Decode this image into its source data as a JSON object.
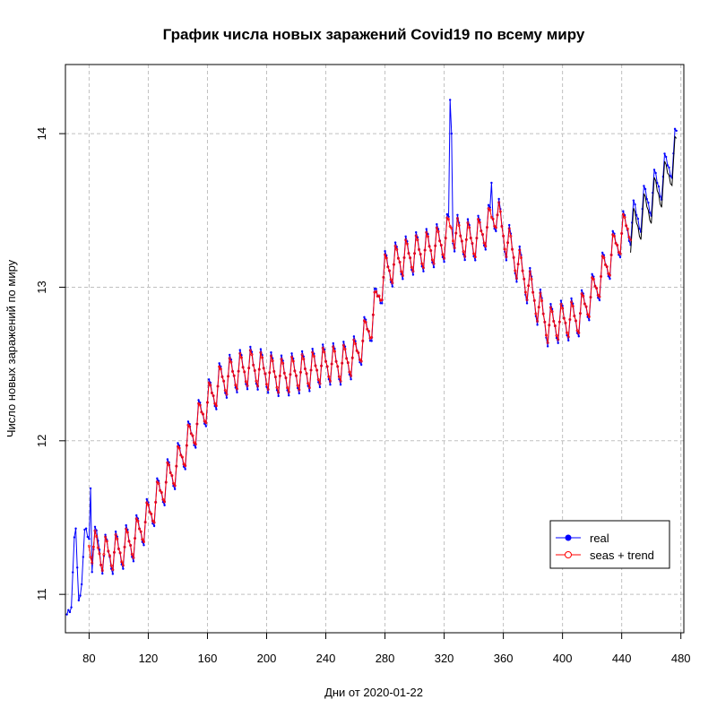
{
  "chart_data": {
    "type": "line",
    "title": "График числа новых заражений Covid19 по всему миру",
    "xlabel": "Дни от 2020-01-22",
    "ylabel": "Число новых заражений по миру",
    "xlim": [
      64,
      482
    ],
    "ylim": [
      10.75,
      14.45
    ],
    "x_ticks": [
      80,
      120,
      160,
      200,
      240,
      280,
      320,
      360,
      400,
      440,
      480
    ],
    "y_ticks": [
      11,
      12,
      13,
      14
    ],
    "grid": true,
    "legend_position": "bottom-right",
    "series": [
      {
        "name": "real",
        "color": "#0000ff",
        "marker": "filled-dot",
        "x_start": 65,
        "x_end": 477,
        "anchors": [
          [
            65,
            10.85
          ],
          [
            68,
            11.05
          ],
          [
            71,
            11.33
          ],
          [
            73,
            10.98
          ],
          [
            75,
            11.2
          ],
          [
            78,
            11.33
          ],
          [
            80,
            11.38
          ],
          [
            81,
            11.69
          ],
          [
            82,
            11.28
          ],
          [
            86,
            11.33
          ],
          [
            90,
            11.25
          ],
          [
            100,
            11.28
          ],
          [
            110,
            11.35
          ],
          [
            120,
            11.5
          ],
          [
            130,
            11.7
          ],
          [
            140,
            11.85
          ],
          [
            150,
            12.05
          ],
          [
            160,
            12.25
          ],
          [
            170,
            12.4
          ],
          [
            180,
            12.45
          ],
          [
            190,
            12.48
          ],
          [
            200,
            12.45
          ],
          [
            210,
            12.42
          ],
          [
            220,
            12.44
          ],
          [
            230,
            12.46
          ],
          [
            240,
            12.5
          ],
          [
            250,
            12.5
          ],
          [
            260,
            12.55
          ],
          [
            270,
            12.75
          ],
          [
            280,
            13.1
          ],
          [
            290,
            13.18
          ],
          [
            300,
            13.22
          ],
          [
            310,
            13.25
          ],
          [
            320,
            13.3
          ],
          [
            325,
            13.4
          ],
          [
            330,
            13.32
          ],
          [
            340,
            13.3
          ],
          [
            350,
            13.4
          ],
          [
            355,
            13.5
          ],
          [
            360,
            13.35
          ],
          [
            370,
            13.15
          ],
          [
            380,
            12.95
          ],
          [
            390,
            12.75
          ],
          [
            400,
            12.78
          ],
          [
            410,
            12.8
          ],
          [
            420,
            12.95
          ],
          [
            430,
            13.15
          ],
          [
            440,
            13.35
          ],
          [
            450,
            13.45
          ],
          [
            460,
            13.6
          ],
          [
            470,
            13.75
          ],
          [
            477,
            13.92
          ]
        ],
        "weekly_amplitude": 0.12,
        "spikes": [
          [
            81,
            11.69
          ],
          [
            324,
            14.22
          ],
          [
            325,
            14.0
          ],
          [
            352,
            13.68
          ]
        ]
      },
      {
        "name": "seas + trend",
        "color": "#ff0000",
        "marker": "open-circle",
        "x_start": 80,
        "x_end": 446,
        "anchors": [
          [
            80,
            11.33
          ],
          [
            90,
            11.26
          ],
          [
            100,
            11.28
          ],
          [
            110,
            11.35
          ],
          [
            120,
            11.5
          ],
          [
            130,
            11.7
          ],
          [
            140,
            11.85
          ],
          [
            150,
            12.05
          ],
          [
            160,
            12.25
          ],
          [
            170,
            12.4
          ],
          [
            180,
            12.45
          ],
          [
            190,
            12.48
          ],
          [
            200,
            12.45
          ],
          [
            210,
            12.42
          ],
          [
            220,
            12.44
          ],
          [
            230,
            12.46
          ],
          [
            240,
            12.5
          ],
          [
            250,
            12.5
          ],
          [
            260,
            12.55
          ],
          [
            270,
            12.75
          ],
          [
            280,
            13.1
          ],
          [
            290,
            13.18
          ],
          [
            300,
            13.22
          ],
          [
            310,
            13.25
          ],
          [
            320,
            13.3
          ],
          [
            325,
            13.4
          ],
          [
            330,
            13.32
          ],
          [
            340,
            13.3
          ],
          [
            350,
            13.4
          ],
          [
            355,
            13.5
          ],
          [
            360,
            13.35
          ],
          [
            370,
            13.15
          ],
          [
            380,
            12.95
          ],
          [
            390,
            12.75
          ],
          [
            400,
            12.78
          ],
          [
            410,
            12.8
          ],
          [
            420,
            12.95
          ],
          [
            430,
            13.15
          ],
          [
            440,
            13.35
          ],
          [
            446,
            13.42
          ]
        ],
        "weekly_amplitude": 0.1
      }
    ]
  }
}
